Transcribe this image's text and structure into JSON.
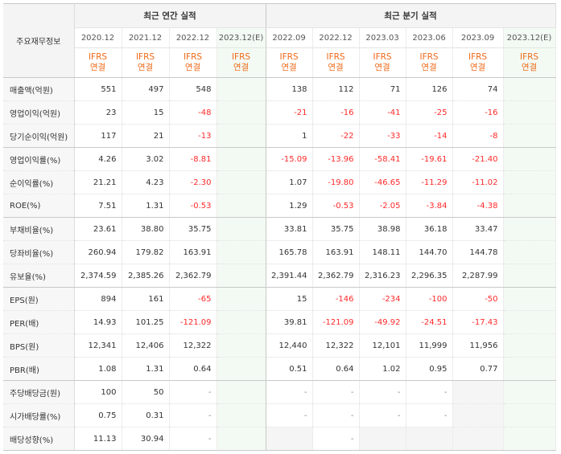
{
  "header": {
    "row_label": "주요재무정보",
    "group_annual": "최근 연간 실적",
    "group_quarter": "최근 분기 실적",
    "periods": [
      {
        "date": "2020.12",
        "basis_top": "IFRS",
        "basis_bottom": "연결"
      },
      {
        "date": "2021.12",
        "basis_top": "IFRS",
        "basis_bottom": "연결"
      },
      {
        "date": "2022.12",
        "basis_top": "IFRS",
        "basis_bottom": "연결"
      },
      {
        "date": "2023.12(E)",
        "basis_top": "IFRS",
        "basis_bottom": "연결"
      },
      {
        "date": "2022.09",
        "basis_top": "IFRS",
        "basis_bottom": "연결"
      },
      {
        "date": "2022.12",
        "basis_top": "IFRS",
        "basis_bottom": "연결"
      },
      {
        "date": "2023.03",
        "basis_top": "IFRS",
        "basis_bottom": "연결"
      },
      {
        "date": "2023.06",
        "basis_top": "IFRS",
        "basis_bottom": "연결"
      },
      {
        "date": "2023.09",
        "basis_top": "IFRS",
        "basis_bottom": "연결"
      },
      {
        "date": "2023.12(E)",
        "basis_top": "IFRS",
        "basis_bottom": "연결"
      }
    ]
  },
  "rows": [
    {
      "label": "매출액(억원)",
      "values": [
        "551",
        "497",
        "548",
        "",
        "138",
        "112",
        "71",
        "126",
        "74",
        ""
      ]
    },
    {
      "label": "영업이익(억원)",
      "values": [
        "23",
        "15",
        "-48",
        "",
        "-21",
        "-16",
        "-41",
        "-25",
        "-16",
        ""
      ]
    },
    {
      "label": "당기순이익(억원)",
      "values": [
        "117",
        "21",
        "-13",
        "",
        "1",
        "-22",
        "-33",
        "-14",
        "-8",
        ""
      ]
    },
    {
      "label": "영업이익률(%)",
      "values": [
        "4.26",
        "3.02",
        "-8.81",
        "",
        "-15.09",
        "-13.96",
        "-58.41",
        "-19.61",
        "-21.40",
        ""
      ]
    },
    {
      "label": "순이익률(%)",
      "values": [
        "21.21",
        "4.23",
        "-2.30",
        "",
        "1.07",
        "-19.80",
        "-46.65",
        "-11.29",
        "-11.02",
        ""
      ]
    },
    {
      "label": "ROE(%)",
      "values": [
        "7.51",
        "1.31",
        "-0.53",
        "",
        "1.29",
        "-0.53",
        "-2.05",
        "-3.84",
        "-4.38",
        ""
      ]
    },
    {
      "label": "부채비율(%)",
      "values": [
        "23.61",
        "38.80",
        "35.75",
        "",
        "33.81",
        "35.75",
        "38.98",
        "36.18",
        "33.47",
        ""
      ]
    },
    {
      "label": "당좌비율(%)",
      "values": [
        "260.94",
        "179.82",
        "163.91",
        "",
        "165.78",
        "163.91",
        "148.11",
        "144.70",
        "144.78",
        ""
      ]
    },
    {
      "label": "유보율(%)",
      "values": [
        "2,374.59",
        "2,385.26",
        "2,362.79",
        "",
        "2,391.44",
        "2,362.79",
        "2,316.23",
        "2,296.35",
        "2,287.99",
        ""
      ]
    },
    {
      "label": "EPS(원)",
      "values": [
        "894",
        "161",
        "-65",
        "",
        "15",
        "-146",
        "-234",
        "-100",
        "-50",
        ""
      ]
    },
    {
      "label": "PER(배)",
      "values": [
        "14.93",
        "101.25",
        "-121.09",
        "",
        "39.81",
        "-121.09",
        "-49.92",
        "-24.51",
        "-17.43",
        ""
      ]
    },
    {
      "label": "BPS(원)",
      "values": [
        "12,341",
        "12,406",
        "12,322",
        "",
        "12,440",
        "12,322",
        "12,101",
        "11,999",
        "11,956",
        ""
      ]
    },
    {
      "label": "PBR(배)",
      "values": [
        "1.08",
        "1.31",
        "0.64",
        "",
        "0.51",
        "0.64",
        "1.02",
        "0.95",
        "0.77",
        ""
      ]
    },
    {
      "label": "주당배당금(원)",
      "values": [
        "100",
        "50",
        "-",
        "",
        "-",
        "-",
        "-",
        "-",
        "",
        ""
      ]
    },
    {
      "label": "시가배당률(%)",
      "values": [
        "0.75",
        "0.31",
        "-",
        "",
        "-",
        "-",
        "-",
        "-",
        "",
        ""
      ]
    },
    {
      "label": "배당성향(%)",
      "values": [
        "11.13",
        "30.94",
        "-",
        "",
        "",
        "-",
        "",
        "",
        "",
        ""
      ]
    }
  ],
  "separators_after": [
    2,
    5,
    8,
    12,
    15
  ],
  "empty_cells": [
    [
      13,
      8
    ],
    [
      14,
      8
    ],
    [
      15,
      4
    ],
    [
      15,
      6
    ],
    [
      15,
      7
    ],
    [
      15,
      8
    ]
  ],
  "colors": {
    "negative": "#ff2a2a",
    "ifrs": "#ef6a1a",
    "estimate_bg": "#f3faf3",
    "header_bg": "#f4f4f4"
  }
}
